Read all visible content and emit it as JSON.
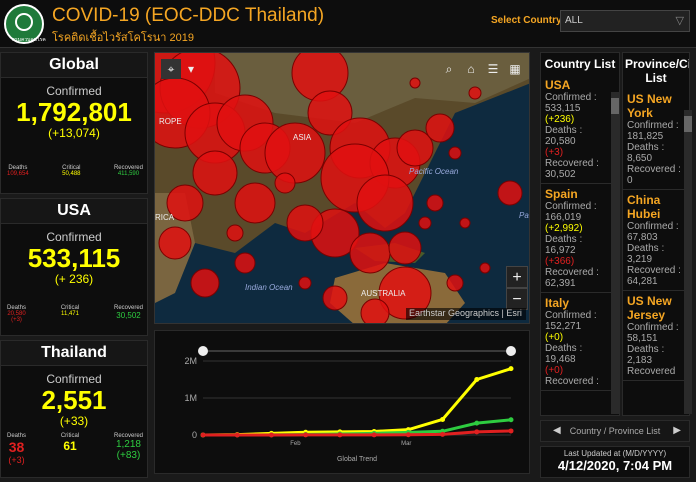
{
  "header": {
    "title": "COVID-19 (EOC-DDC Thailand)",
    "subtitle": "โรคติดเชื้อไวรัสโคโรนา 2019",
    "select_label": "Select Country",
    "select_value": "ALL",
    "logo_text": "กรมควบคุมโรค"
  },
  "global": {
    "title": "Global",
    "confirmed_label": "Confirmed",
    "confirmed": "1,792,801",
    "delta": "(+13,074)",
    "deaths_label": "Deaths",
    "deaths": "109,654",
    "critical_label": "Critical",
    "critical": "50,488",
    "recovered_label": "Recovered",
    "recovered": "411,590"
  },
  "usa": {
    "title": "USA",
    "confirmed_label": "Confirmed",
    "confirmed": "533,115",
    "delta": "(+ 236)",
    "deaths_label": "Deaths",
    "deaths": "20,580",
    "deaths_delta": "(+3)",
    "critical_label": "Critical",
    "critical": "11,471",
    "recovered_label": "Recovered",
    "recovered": "30,502"
  },
  "thailand": {
    "title": "Thailand",
    "confirmed_label": "Confirmed",
    "confirmed": "2,551",
    "delta": "(+33)",
    "deaths_label": "Deaths",
    "deaths": "38",
    "deaths_delta": "(+3)",
    "critical_label": "Critical",
    "critical": "61",
    "recovered_label": "Recovered",
    "recovered": "1,218",
    "recovered_delta": "(+83)"
  },
  "map": {
    "labels": {
      "asia": "ASIA",
      "pacific": "Pacific Ocean",
      "indian": "Indian Ocean",
      "australia": "AUSTRALIA",
      "europe": "ROPE",
      "africa": "RICA",
      "pa": "Pa"
    },
    "attribution": "Earthstar Geographics | Esri",
    "zoom_in": "+",
    "zoom_out": "−"
  },
  "chart": {
    "title": "Global Trend",
    "y_ticks": [
      "2M",
      "1M",
      "0"
    ],
    "x_ticks": [
      "Feb",
      "Mar"
    ]
  },
  "chart_data": {
    "type": "line",
    "xlabel": "Global Trend",
    "ylim": [
      0,
      2000000
    ],
    "series": [
      {
        "values": [
          600,
          9800,
          45000,
          75000,
          85000,
          95000,
          145000,
          420000,
          1500000,
          1792801
        ]
      },
      {
        "values": [
          30,
          200,
          3000,
          12000,
          28000,
          45000,
          70000,
          100000,
          320000,
          411590
        ]
      },
      {
        "values": [
          17,
          210,
          1100,
          2200,
          2900,
          3300,
          5800,
          16000,
          86000,
          109654
        ]
      }
    ]
  },
  "country_list": {
    "title": "Country List",
    "entries": [
      {
        "name": "USA",
        "confirmed_label": "Confirmed :",
        "confirmed": "533,115",
        "confirmed_delta": "(+236)",
        "deaths_label": "Deaths :",
        "deaths": "20,580",
        "deaths_delta": "(+3)",
        "recovered_label": "Recovered :",
        "recovered": "30,502"
      },
      {
        "name": "Spain",
        "confirmed_label": "Confirmed :",
        "confirmed": "166,019",
        "confirmed_delta": "(+2,992)",
        "deaths_label": "Deaths :",
        "deaths": "16,972",
        "deaths_delta": "(+366)",
        "recovered_label": "Recovered :",
        "recovered": "62,391"
      },
      {
        "name": "Italy",
        "confirmed_label": "Confirmed :",
        "confirmed": "152,271",
        "confirmed_delta": "(+0)",
        "deaths_label": "Deaths :",
        "deaths": "19,468",
        "deaths_delta": "(+0)",
        "recovered_label": "Recovered :",
        "recovered": ""
      }
    ]
  },
  "province_list": {
    "title": "Province/City List",
    "entries": [
      {
        "name": "US New York",
        "confirmed_label": "Confirmed :",
        "confirmed": "181,825",
        "deaths_label": "Deaths :",
        "deaths": "8,650",
        "recovered_label": "Recovered :",
        "recovered": "0"
      },
      {
        "name": "China Hubei",
        "confirmed_label": "Confirmed :",
        "confirmed": "67,803",
        "deaths_label": "Deaths :",
        "deaths": "3,219",
        "recovered_label": "Recovered :",
        "recovered": "64,281"
      },
      {
        "name": "US New Jersey",
        "confirmed_label": "Confirmed :",
        "confirmed": "58,151",
        "deaths_label": "Deaths :",
        "deaths": "2,183",
        "recovered_label": "Recovered",
        "recovered": ""
      }
    ]
  },
  "list_footer": {
    "label": "Country / Province List"
  },
  "updated": {
    "label": "Last Updated at (M/D/YYYY)",
    "time": "4/12/2020, 7:04 PM"
  },
  "colors": {
    "accent": "#f5a623",
    "confirmed": "#ffff00",
    "deaths": "#e02020",
    "recovered": "#2ecc40",
    "bubble": "#e01010"
  }
}
